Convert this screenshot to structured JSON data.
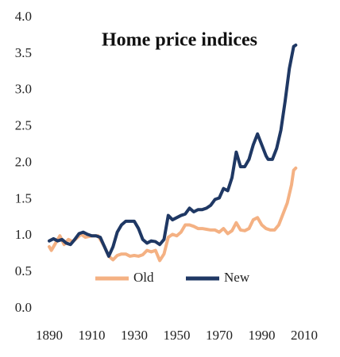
{
  "chart_data": {
    "type": "line",
    "title": "Home price indices",
    "xlim": [
      1890,
      2010
    ],
    "xticks": [
      1890,
      1910,
      1930,
      1950,
      1970,
      1990,
      2010
    ],
    "ylim": [
      0,
      4
    ],
    "yticks": [
      {
        "value": 0,
        "label": "0.0"
      },
      0.5,
      {
        "value": 1,
        "label": "1.0"
      },
      1.5,
      {
        "value": 2,
        "label": "2.0"
      },
      2.5,
      {
        "value": 3,
        "label": "3.0"
      },
      3.5,
      {
        "value": 4,
        "label": "4.0"
      }
    ],
    "legend": "lower center",
    "series": [
      {
        "name": "Old",
        "color": "#f4b183",
        "x": [
          1890,
          1891,
          1893,
          1895,
          1897,
          1899,
          1901,
          1903,
          1905,
          1907,
          1910,
          1913,
          1916,
          1918,
          1920,
          1922,
          1924,
          1926,
          1928,
          1930,
          1932,
          1934,
          1936,
          1938,
          1940,
          1942,
          1944,
          1946,
          1948,
          1950,
          1952,
          1954,
          1956,
          1958,
          1960,
          1962,
          1964,
          1966,
          1968,
          1970,
          1972,
          1974,
          1976,
          1978,
          1980,
          1982,
          1984,
          1986,
          1988,
          1990,
          1992,
          1994,
          1996,
          1998,
          2000,
          2002,
          2004,
          2005,
          2006
        ],
        "values": [
          0.85,
          0.8,
          0.9,
          1.0,
          0.88,
          0.95,
          0.92,
          0.97,
          1.02,
          0.98,
          1.0,
          1.0,
          0.85,
          0.72,
          0.67,
          0.73,
          0.75,
          0.75,
          0.72,
          0.73,
          0.72,
          0.74,
          0.8,
          0.78,
          0.8,
          0.66,
          0.75,
          0.98,
          1.02,
          1.0,
          1.05,
          1.15,
          1.15,
          1.13,
          1.1,
          1.1,
          1.09,
          1.08,
          1.08,
          1.05,
          1.1,
          1.03,
          1.07,
          1.18,
          1.08,
          1.07,
          1.1,
          1.22,
          1.25,
          1.15,
          1.1,
          1.08,
          1.08,
          1.15,
          1.3,
          1.45,
          1.7,
          1.9,
          1.93
        ]
      },
      {
        "name": "New",
        "color": "#1f3864",
        "x": [
          1890,
          1892,
          1894,
          1896,
          1898,
          1900,
          1902,
          1904,
          1906,
          1908,
          1910,
          1912,
          1914,
          1916,
          1918,
          1920,
          1922,
          1924,
          1926,
          1928,
          1930,
          1932,
          1934,
          1936,
          1938,
          1940,
          1942,
          1944,
          1946,
          1948,
          1950,
          1952,
          1954,
          1956,
          1958,
          1960,
          1962,
          1964,
          1966,
          1968,
          1970,
          1972,
          1974,
          1976,
          1978,
          1980,
          1982,
          1984,
          1986,
          1988,
          1990,
          1992,
          1993,
          1995,
          1997,
          1999,
          2001,
          2003,
          2005,
          2006
        ],
        "values": [
          0.93,
          0.96,
          0.93,
          0.95,
          0.9,
          0.88,
          0.95,
          1.03,
          1.05,
          1.02,
          1.0,
          1.0,
          0.98,
          0.85,
          0.72,
          0.85,
          1.05,
          1.15,
          1.2,
          1.2,
          1.2,
          1.1,
          0.95,
          0.9,
          0.93,
          0.92,
          0.88,
          0.95,
          1.28,
          1.22,
          1.25,
          1.28,
          1.3,
          1.38,
          1.33,
          1.36,
          1.36,
          1.38,
          1.42,
          1.5,
          1.52,
          1.65,
          1.62,
          1.8,
          2.15,
          1.95,
          1.95,
          2.05,
          2.25,
          2.4,
          2.25,
          2.1,
          2.05,
          2.05,
          2.2,
          2.45,
          2.85,
          3.3,
          3.6,
          3.62
        ]
      }
    ]
  }
}
